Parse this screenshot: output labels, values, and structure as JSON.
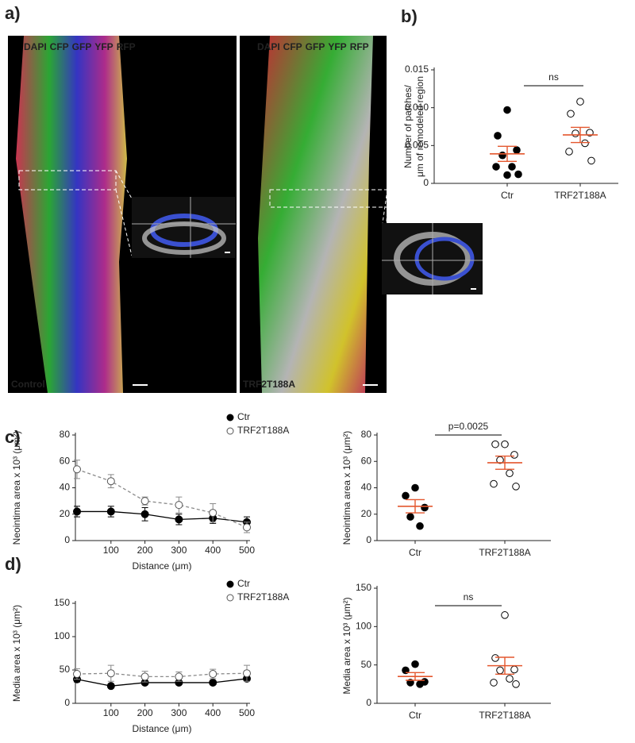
{
  "figure": {
    "panel_labels": [
      "a)",
      "b)",
      "c)",
      "d)"
    ],
    "images": [
      {
        "channels": [
          {
            "name": "DAPI",
            "color": "#ffffff"
          },
          {
            "name": "CFP",
            "color": "#3fa9ff"
          },
          {
            "name": "GFP",
            "color": "#2fd22f"
          },
          {
            "name": "YFP",
            "color": "#f5e600"
          },
          {
            "name": "RFP",
            "color": "#ff2a2a"
          }
        ],
        "label": "Control"
      },
      {
        "channels": [
          {
            "name": "DAPI",
            "color": "#ffffff"
          },
          {
            "name": "CFP",
            "color": "#3fa9ff"
          },
          {
            "name": "GFP",
            "color": "#2fd22f"
          },
          {
            "name": "YFP",
            "color": "#f5e600"
          },
          {
            "name": "RFP",
            "color": "#ff2a2a"
          }
        ],
        "label": "TRF2T188A"
      }
    ]
  },
  "chart_data": [
    {
      "type": "dot",
      "ylabel": [
        "Number of patches/",
        "μm of remodeled region"
      ],
      "ylim": [
        0,
        0.015
      ],
      "yticks": [
        0,
        0.005,
        {
          "value": 0.01,
          "label": "0.010"
        },
        0.015
      ],
      "annotation": "ns",
      "mean_color": "#e4572e",
      "groups": [
        {
          "name": "Ctr",
          "fill": "#000000",
          "values": [
            0.0097,
            0.0063,
            0.0044,
            0.0037,
            0.0022,
            0.0022,
            0.0012,
            0.0011
          ],
          "mean": 0.0039,
          "sem": 0.001
        },
        {
          "name": "TRF2T188A",
          "fill": "#ffffff",
          "values": [
            0.0108,
            0.0092,
            0.0067,
            0.0066,
            0.0053,
            0.0042,
            0.003
          ],
          "mean": 0.0064,
          "sem": 0.001
        }
      ]
    },
    {
      "type": "line",
      "ylabel": "Neointima area x 10³ (μm²)",
      "xlabel": "Distance (μm)",
      "xlim": [
        0,
        500
      ],
      "xticks": [
        100,
        200,
        300,
        400,
        500
      ],
      "ylim": [
        0,
        80
      ],
      "yticks": [
        0,
        20,
        40,
        60,
        80
      ],
      "x": [
        0,
        100,
        200,
        300,
        400,
        500
      ],
      "series": [
        {
          "name": "Ctr",
          "color": "#000000",
          "marker_fill": "#000000",
          "dashed": false,
          "values": [
            22,
            22,
            20,
            16,
            17,
            14
          ],
          "errors": [
            4,
            4,
            5,
            4,
            4,
            4
          ]
        },
        {
          "name": "TRF2T188A",
          "color": "#8a8a8a",
          "marker_fill": "#ffffff",
          "dashed": true,
          "values": [
            54,
            45,
            30,
            27,
            21,
            10
          ],
          "errors": [
            7,
            5,
            3,
            6,
            7,
            4
          ]
        }
      ]
    },
    {
      "type": "dot",
      "ylabel": "Neointima area x 10³ (μm²)",
      "ylim": [
        0,
        80
      ],
      "yticks": [
        0,
        20,
        40,
        60,
        80
      ],
      "annotation": "p=0.0025",
      "mean_color": "#e4572e",
      "groups": [
        {
          "name": "Ctr",
          "fill": "#000000",
          "values": [
            40,
            34,
            25,
            18,
            11
          ],
          "mean": 26,
          "sem": 5
        },
        {
          "name": "TRF2T188A",
          "fill": "#ffffff",
          "values": [
            73,
            73,
            65,
            61,
            51,
            43,
            41
          ],
          "mean": 59,
          "sem": 5
        }
      ]
    },
    {
      "type": "line",
      "ylabel": "Media area x 10³ (μm²)",
      "xlabel": "Distance (μm)",
      "xlim": [
        0,
        500
      ],
      "xticks": [
        100,
        200,
        300,
        400,
        500
      ],
      "ylim": [
        0,
        150
      ],
      "yticks": [
        0,
        50,
        100,
        150
      ],
      "x": [
        0,
        100,
        200,
        300,
        400,
        500
      ],
      "series": [
        {
          "name": "Ctr",
          "color": "#000000",
          "marker_fill": "#000000",
          "dashed": false,
          "values": [
            36,
            26,
            31,
            31,
            31,
            37
          ],
          "errors": [
            4,
            1,
            3,
            3,
            3,
            3
          ]
        },
        {
          "name": "TRF2T188A",
          "color": "#8a8a8a",
          "marker_fill": "#ffffff",
          "dashed": true,
          "values": [
            44,
            45,
            40,
            40,
            44,
            45
          ],
          "errors": [
            8,
            12,
            8,
            7,
            7,
            12
          ]
        }
      ]
    },
    {
      "type": "dot",
      "ylabel": "Media area x 10³ (μm²)",
      "ylim": [
        0,
        150
      ],
      "yticks": [
        0,
        50,
        100,
        150
      ],
      "annotation": "ns",
      "mean_color": "#e4572e",
      "groups": [
        {
          "name": "Ctr",
          "fill": "#000000",
          "values": [
            51,
            43,
            28,
            27,
            25
          ],
          "mean": 35,
          "sem": 5
        },
        {
          "name": "TRF2T188A",
          "fill": "#ffffff",
          "values": [
            115,
            59,
            44,
            43,
            32,
            27,
            25
          ],
          "mean": 49,
          "sem": 11
        }
      ]
    }
  ]
}
